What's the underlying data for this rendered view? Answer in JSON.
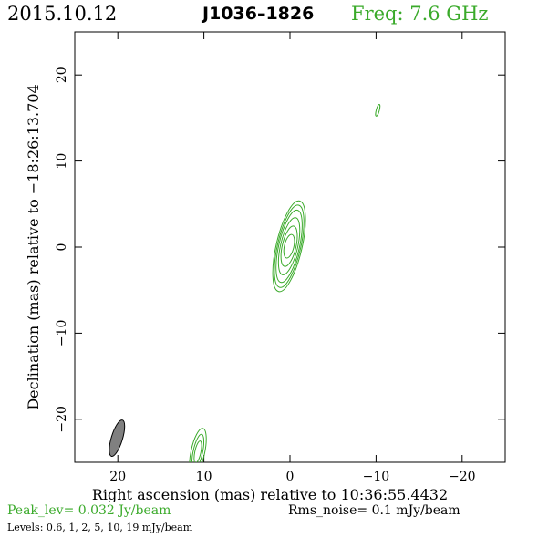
{
  "header": {
    "date": "2015.10.12",
    "source": "J1036–1826",
    "frequency": "Freq: 7.6 GHz"
  },
  "footer": {
    "peak": "Peak_lev=  0.032 Jy/beam",
    "rms": "Rms_noise=  0.1 mJy/beam",
    "levels": "Levels: 0.6,   1,   2,   5,   10,   19 mJy/beam"
  },
  "colors": {
    "contour": "#3aaa2a",
    "beam": "#808080",
    "axes": "#000000"
  },
  "chart_data": {
    "type": "contour",
    "title": "J1036–1826",
    "xlabel": "Right ascension (mas) relative to 10:36:55.4432",
    "ylabel": "Declination (mas) relative to −18:26:13.704",
    "xlim": [
      25,
      -25
    ],
    "ylim": [
      -25,
      25
    ],
    "xticks": [
      20,
      10,
      0,
      -10,
      -20
    ],
    "yticks": [
      -20,
      -10,
      0,
      10,
      20
    ],
    "xtick_labels": [
      "20",
      "10",
      "0",
      "−10",
      "−20"
    ],
    "ytick_labels": [
      "−20",
      "−10",
      "0",
      "10",
      "20"
    ],
    "peak_flux_jy_per_beam": 0.032,
    "rms_noise_mjy_per_beam": 0.1,
    "contour_levels_mjy_per_beam": [
      0.6,
      1,
      2,
      5,
      10,
      19
    ],
    "components": [
      {
        "center": [
          0.1,
          0.1
        ],
        "angle_deg": 13,
        "contours": [
          {
            "a": 1.5,
            "b": 5.4
          },
          {
            "a": 1.35,
            "b": 4.9
          },
          {
            "a": 1.2,
            "b": 4.3
          },
          {
            "a": 1.0,
            "b": 3.4
          },
          {
            "a": 0.8,
            "b": 2.4
          },
          {
            "a": 0.55,
            "b": 1.4
          }
        ]
      },
      {
        "center": [
          -10.2,
          15.9
        ],
        "angle_deg": 15,
        "contours": [
          {
            "a": 0.18,
            "b": 0.7
          }
        ]
      }
    ],
    "edge_components": [
      {
        "center": [
          10.7,
          -23.8
        ],
        "angle_deg": 12,
        "contours": [
          {
            "a": 0.8,
            "b": 2.8
          },
          {
            "a": 0.55,
            "b": 2.1
          },
          {
            "a": 0.35,
            "b": 1.3
          }
        ]
      }
    ],
    "beam": {
      "center": [
        20.1,
        -22.2
      ],
      "major": 2.2,
      "minor": 0.65,
      "angle_deg": 17
    }
  }
}
